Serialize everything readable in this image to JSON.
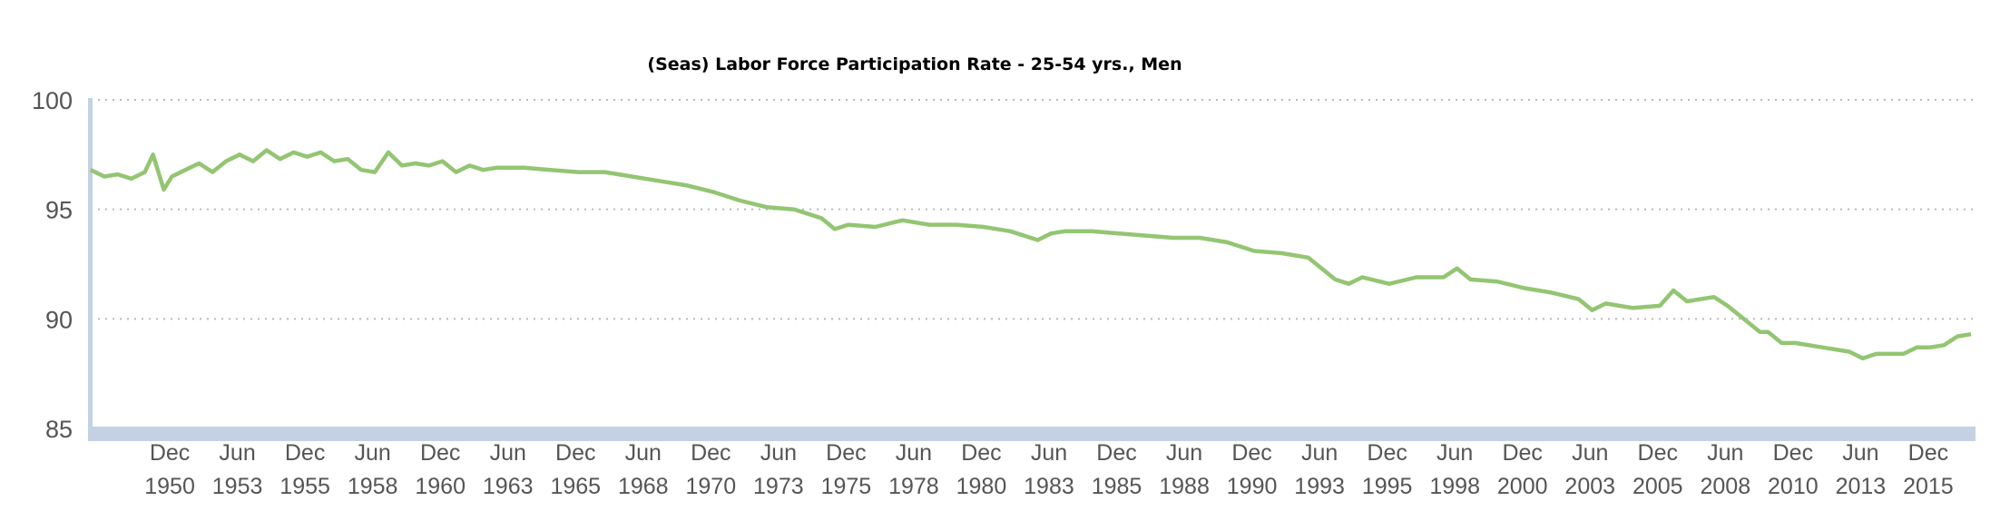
{
  "chart_data": {
    "type": "line",
    "title": "(Seas) Labor Force Participation Rate - 25-54 yrs., Men",
    "xlabel": "",
    "ylabel": "",
    "ylim": [
      85,
      100
    ],
    "xlim": [
      1948,
      2017.6
    ],
    "grid": true,
    "line_color": "#93c572",
    "axis_color": "#c3d1e3",
    "y_ticks": [
      100,
      95,
      90,
      85
    ],
    "x_ticks": [
      {
        "t": 1950.92,
        "month": "Dec",
        "year": "1950"
      },
      {
        "t": 1953.42,
        "month": "Jun",
        "year": "1953"
      },
      {
        "t": 1955.92,
        "month": "Dec",
        "year": "1955"
      },
      {
        "t": 1958.42,
        "month": "Jun",
        "year": "1958"
      },
      {
        "t": 1960.92,
        "month": "Dec",
        "year": "1960"
      },
      {
        "t": 1963.42,
        "month": "Jun",
        "year": "1963"
      },
      {
        "t": 1965.92,
        "month": "Dec",
        "year": "1965"
      },
      {
        "t": 1968.42,
        "month": "Jun",
        "year": "1968"
      },
      {
        "t": 1970.92,
        "month": "Dec",
        "year": "1970"
      },
      {
        "t": 1973.42,
        "month": "Jun",
        "year": "1973"
      },
      {
        "t": 1975.92,
        "month": "Dec",
        "year": "1975"
      },
      {
        "t": 1978.42,
        "month": "Jun",
        "year": "1978"
      },
      {
        "t": 1980.92,
        "month": "Dec",
        "year": "1980"
      },
      {
        "t": 1983.42,
        "month": "Jun",
        "year": "1983"
      },
      {
        "t": 1985.92,
        "month": "Dec",
        "year": "1985"
      },
      {
        "t": 1988.42,
        "month": "Jun",
        "year": "1988"
      },
      {
        "t": 1990.92,
        "month": "Dec",
        "year": "1990"
      },
      {
        "t": 1993.42,
        "month": "Jun",
        "year": "1993"
      },
      {
        "t": 1995.92,
        "month": "Dec",
        "year": "1995"
      },
      {
        "t": 1998.42,
        "month": "Jun",
        "year": "1998"
      },
      {
        "t": 2000.92,
        "month": "Dec",
        "year": "2000"
      },
      {
        "t": 2003.42,
        "month": "Jun",
        "year": "2003"
      },
      {
        "t": 2005.92,
        "month": "Dec",
        "year": "2005"
      },
      {
        "t": 2008.42,
        "month": "Jun",
        "year": "2008"
      },
      {
        "t": 2010.92,
        "month": "Dec",
        "year": "2010"
      },
      {
        "t": 2013.42,
        "month": "Jun",
        "year": "2013"
      },
      {
        "t": 2015.92,
        "month": "Dec",
        "year": "2015"
      }
    ],
    "series": [
      {
        "name": "(Seas) Labor Force Participation Rate - 25-54 yrs., Men",
        "x": [
          1948,
          1948.5,
          1949,
          1949.5,
          1950,
          1950.3,
          1950.7,
          1951,
          1951.5,
          1952,
          1952.5,
          1953,
          1953.5,
          1954,
          1954.5,
          1955,
          1955.5,
          1956,
          1956.5,
          1957,
          1957.5,
          1958,
          1958.5,
          1959,
          1959.5,
          1960,
          1960.5,
          1961,
          1961.5,
          1962,
          1962.5,
          1963,
          1964,
          1965,
          1966,
          1967,
          1968,
          1969,
          1970,
          1971,
          1972,
          1973,
          1974,
          1975,
          1975.5,
          1976,
          1977,
          1978,
          1979,
          1980,
          1981,
          1982,
          1983,
          1983.5,
          1984,
          1985,
          1986,
          1987,
          1988,
          1989,
          1990,
          1991,
          1992,
          1993,
          1994,
          1994.5,
          1995,
          1996,
          1997,
          1998,
          1998.5,
          1999,
          2000,
          2001,
          2002,
          2003,
          2003.5,
          2004,
          2005,
          2006,
          2006.5,
          2007,
          2008,
          2008.5,
          2009,
          2009.7,
          2010,
          2010.5,
          2011,
          2012,
          2013,
          2013.5,
          2014,
          2015,
          2015.5,
          2016,
          2016.5,
          2017,
          2017.5
        ],
        "values": [
          96.8,
          96.5,
          96.6,
          96.4,
          96.7,
          97.5,
          95.9,
          96.5,
          96.8,
          97.1,
          96.7,
          97.2,
          97.5,
          97.2,
          97.7,
          97.3,
          97.6,
          97.4,
          97.6,
          97.2,
          97.3,
          96.8,
          96.7,
          97.6,
          97.0,
          97.1,
          97.0,
          97.2,
          96.7,
          97.0,
          96.8,
          96.9,
          96.9,
          96.8,
          96.7,
          96.7,
          96.5,
          96.3,
          96.1,
          95.8,
          95.4,
          95.1,
          95.0,
          94.6,
          94.1,
          94.3,
          94.2,
          94.5,
          94.3,
          94.3,
          94.2,
          94.0,
          93.6,
          93.9,
          94.0,
          94.0,
          93.9,
          93.8,
          93.7,
          93.7,
          93.5,
          93.1,
          93.0,
          92.8,
          91.8,
          91.6,
          91.9,
          91.6,
          91.9,
          91.9,
          92.3,
          91.8,
          91.7,
          91.4,
          91.2,
          90.9,
          90.4,
          90.7,
          90.5,
          90.6,
          91.3,
          90.8,
          91.0,
          90.6,
          90.1,
          89.4,
          89.4,
          88.9,
          88.9,
          88.7,
          88.5,
          88.2,
          88.4,
          88.4,
          88.7,
          88.7,
          88.8,
          89.2,
          89.3
        ]
      }
    ]
  }
}
